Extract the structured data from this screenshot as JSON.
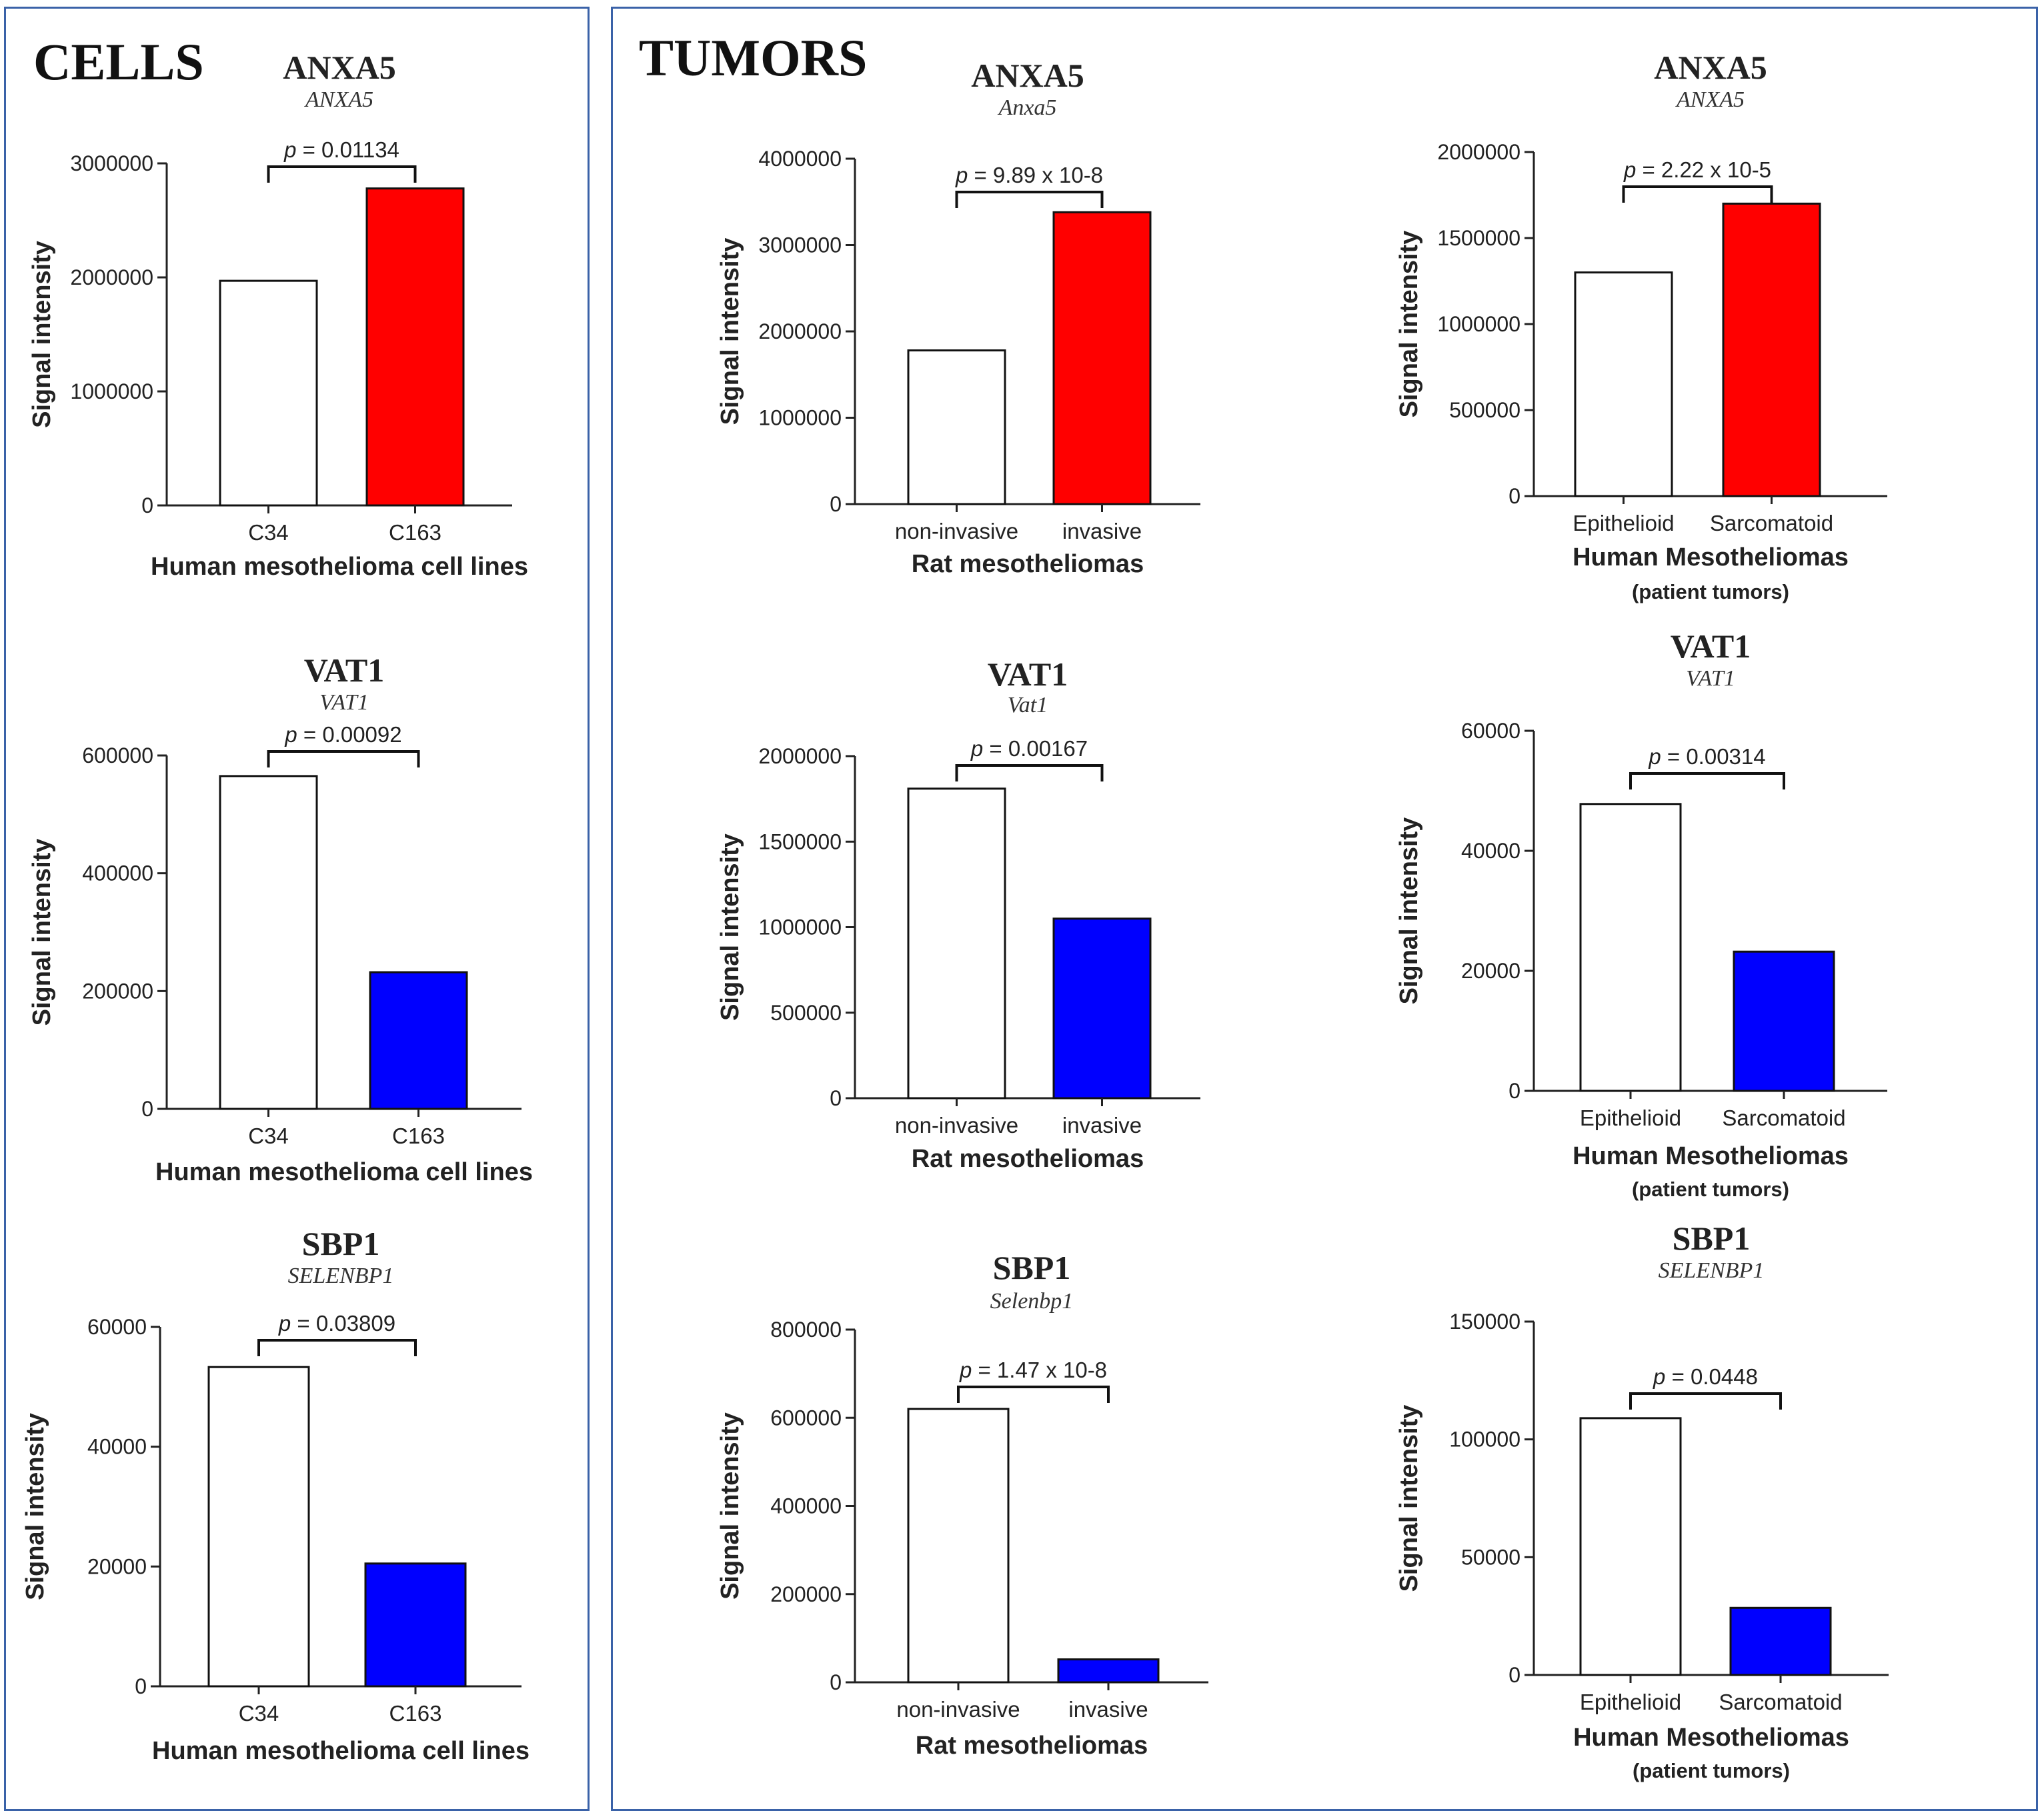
{
  "panels": {
    "cells_title": "CELLS",
    "tumors_title": "TUMORS"
  },
  "colors": {
    "up": "#ff0000",
    "down": "#0000ff",
    "control": "#ffffff",
    "frame": "#3a62a8"
  },
  "chart_data": [
    {
      "id": "cells-anxa5",
      "type": "bar",
      "title": "ANXA5",
      "subtitle": "ANXA5",
      "categories": [
        "C34",
        "C163"
      ],
      "values": [
        1970000,
        2780000
      ],
      "colors": [
        "control",
        "up"
      ],
      "ylim": [
        0,
        3000000
      ],
      "yticks": [
        0,
        1000000,
        2000000,
        3000000
      ],
      "yticklabels": [
        "0",
        "1000000",
        "2000000",
        "3000000"
      ],
      "ylabel": "Signal intensity",
      "xlabel": "Human mesothelioma cell lines",
      "xsub": "",
      "p_prefix": "p",
      "p_value": " = 0.01134"
    },
    {
      "id": "rat-anxa5",
      "type": "bar",
      "title": "ANXA5",
      "subtitle": "Anxa5",
      "categories": [
        "non-invasive",
        "invasive"
      ],
      "values": [
        1780000,
        3380000
      ],
      "colors": [
        "control",
        "up"
      ],
      "ylim": [
        0,
        4000000
      ],
      "yticks": [
        0,
        1000000,
        2000000,
        3000000,
        4000000
      ],
      "yticklabels": [
        "0",
        "1000000",
        "2000000",
        "3000000",
        "4000000"
      ],
      "ylabel": "Signal intensity",
      "xlabel": "Rat mesotheliomas",
      "xsub": "",
      "p_prefix": "p",
      "p_value": " = 9.89 x 10-8"
    },
    {
      "id": "human-anxa5",
      "type": "bar",
      "title": "ANXA5",
      "subtitle": "ANXA5",
      "categories": [
        "Epithelioid",
        "Sarcomatoid"
      ],
      "values": [
        1300000,
        1700000
      ],
      "colors": [
        "control",
        "up"
      ],
      "ylim": [
        0,
        2000000
      ],
      "yticks": [
        0,
        500000,
        1000000,
        1500000,
        2000000
      ],
      "yticklabels": [
        "0",
        "500000",
        "1000000",
        "1500000",
        "2000000"
      ],
      "ylabel": "Signal intensity",
      "xlabel": "Human Mesotheliomas",
      "xsub": "(patient tumors)",
      "p_prefix": "p",
      "p_value": " = 2.22 x 10-5"
    },
    {
      "id": "cells-vat1",
      "type": "bar",
      "title": "VAT1",
      "subtitle": "VAT1",
      "categories": [
        "C34",
        "C163"
      ],
      "values": [
        565000,
        232000
      ],
      "colors": [
        "control",
        "down"
      ],
      "ylim": [
        0,
        600000
      ],
      "yticks": [
        0,
        200000,
        400000,
        600000
      ],
      "yticklabels": [
        "0",
        "200000",
        "400000",
        "600000"
      ],
      "ylabel": "Signal intensity",
      "xlabel": "Human mesothelioma cell lines",
      "xsub": "",
      "p_prefix": "p",
      "p_value": " = 0.00092"
    },
    {
      "id": "rat-vat1",
      "type": "bar",
      "title": "VAT1",
      "subtitle": "Vat1",
      "categories": [
        "non-invasive",
        "invasive"
      ],
      "values": [
        1810000,
        1050000
      ],
      "colors": [
        "control",
        "down"
      ],
      "ylim": [
        0,
        2000000
      ],
      "yticks": [
        0,
        500000,
        1000000,
        1500000,
        2000000
      ],
      "yticklabels": [
        "0",
        "500000",
        "1000000",
        "1500000",
        "2000000"
      ],
      "ylabel": "Signal intensity",
      "xlabel": "Rat mesotheliomas",
      "xsub": "",
      "p_prefix": "p",
      "p_value": " = 0.00167"
    },
    {
      "id": "human-vat1",
      "type": "bar",
      "title": "VAT1",
      "subtitle": "VAT1",
      "categories": [
        "Epithelioid",
        "Sarcomatoid"
      ],
      "values": [
        47800,
        23200
      ],
      "colors": [
        "control",
        "down"
      ],
      "ylim": [
        0,
        60000
      ],
      "yticks": [
        0,
        20000,
        40000,
        60000
      ],
      "yticklabels": [
        "0",
        "20000",
        "40000",
        "60000"
      ],
      "ylabel": "Signal intensity",
      "xlabel": "Human Mesotheliomas",
      "xsub": "(patient tumors)",
      "p_prefix": "p",
      "p_value": " = 0.00314"
    },
    {
      "id": "cells-sbp1",
      "type": "bar",
      "title": "SBP1",
      "subtitle": "SELENBP1",
      "categories": [
        "C34",
        "C163"
      ],
      "values": [
        53300,
        20500
      ],
      "colors": [
        "control",
        "down"
      ],
      "ylim": [
        0,
        60000
      ],
      "yticks": [
        0,
        20000,
        40000,
        60000
      ],
      "yticklabels": [
        "0",
        "20000",
        "40000",
        "60000"
      ],
      "ylabel": "Signal intensity",
      "xlabel": "Human mesothelioma cell lines",
      "xsub": "",
      "p_prefix": "p",
      "p_value": " = 0.03809"
    },
    {
      "id": "rat-sbp1",
      "type": "bar",
      "title": "SBP1",
      "subtitle": "Selenbp1",
      "categories": [
        "non-invasive",
        "invasive"
      ],
      "values": [
        620000,
        52000
      ],
      "colors": [
        "control",
        "down"
      ],
      "ylim": [
        0,
        800000
      ],
      "yticks": [
        0,
        200000,
        400000,
        600000,
        800000
      ],
      "yticklabels": [
        "0",
        "200000",
        "400000",
        "600000",
        "800000"
      ],
      "ylabel": "Signal intensity",
      "xlabel": "Rat mesotheliomas",
      "xsub": "",
      "p_prefix": "p",
      "p_value": " = 1.47 x 10-8"
    },
    {
      "id": "human-sbp1",
      "type": "bar",
      "title": "SBP1",
      "subtitle": "SELENBP1",
      "categories": [
        "Epithelioid",
        "Sarcomatoid"
      ],
      "values": [
        109000,
        28500
      ],
      "colors": [
        "control",
        "down"
      ],
      "ylim": [
        0,
        150000
      ],
      "yticks": [
        0,
        50000,
        100000,
        150000
      ],
      "yticklabels": [
        "0",
        "50000",
        "100000",
        "150000"
      ],
      "ylabel": "Signal intensity",
      "xlabel": "Human Mesotheliomas",
      "xsub": "(patient tumors)",
      "p_prefix": "p",
      "p_value": " = 0.0448"
    }
  ]
}
